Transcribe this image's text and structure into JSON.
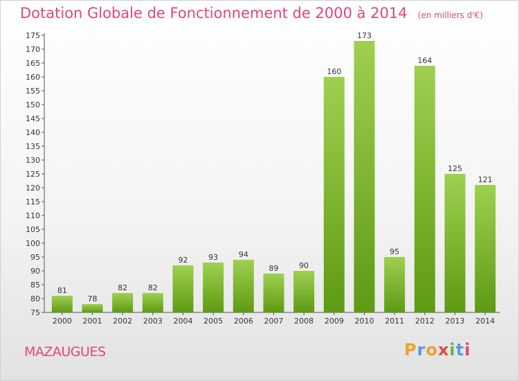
{
  "header": {
    "title": "Dotation Globale de Fonctionnement de 2000 à 2014",
    "subtitle": "(en milliers d'€)"
  },
  "footer": {
    "commune": "MAZAUGUES",
    "brand": "Proxiti"
  },
  "colors": {
    "title": "#e0457b",
    "bar_top": "#9fd04f",
    "bar_bottom": "#5e9a14",
    "brand_letters": [
      "#f0a030",
      "#5a9be0",
      "#f0a030",
      "#e04a4a",
      "#6ab04c",
      "#5a9be0",
      "#e0457b"
    ]
  },
  "chart_data": {
    "type": "bar",
    "title": "Dotation Globale de Fonctionnement de 2000 à 2014",
    "subtitle": "(en milliers d'€)",
    "categories": [
      "2000",
      "2001",
      "2002",
      "2003",
      "2004",
      "2005",
      "2006",
      "2007",
      "2008",
      "2009",
      "2010",
      "2011",
      "2012",
      "2013",
      "2014"
    ],
    "values": [
      81,
      78,
      82,
      82,
      92,
      93,
      94,
      89,
      90,
      160,
      173,
      95,
      164,
      125,
      121
    ],
    "ylim": [
      75,
      175
    ],
    "ytick_step": 5,
    "grid": false,
    "legend": "none"
  }
}
